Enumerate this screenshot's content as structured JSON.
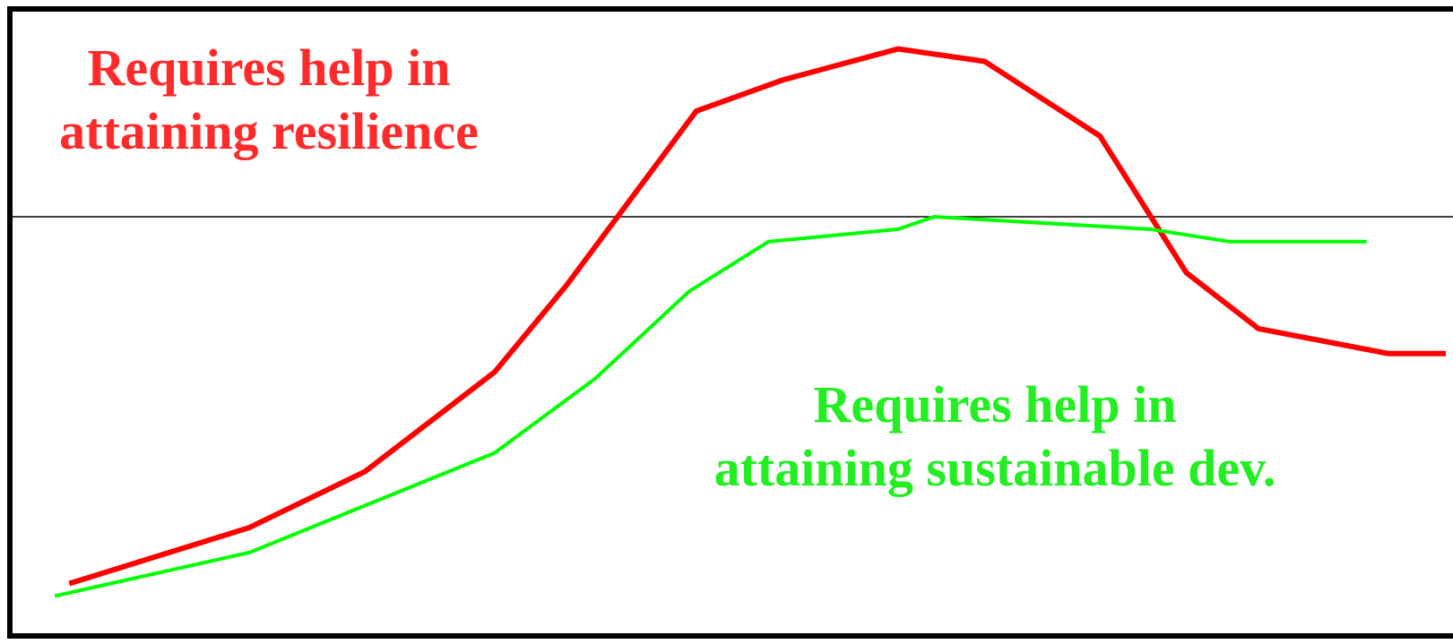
{
  "chart_data": {
    "type": "line",
    "title": "",
    "xlabel": "",
    "ylabel": "",
    "xlim": [
      0,
      100
    ],
    "ylim": [
      0,
      100
    ],
    "grid": false,
    "reference_line": {
      "y": 67
    },
    "series": [
      {
        "key": "resilience",
        "color": "#ff0000",
        "x": [
          4,
          16.5,
          24.5,
          33.5,
          38.5,
          47.5,
          53.5,
          61.5,
          67.5,
          75.5,
          81.5,
          86.5,
          95.5,
          99.5
        ],
        "y": [
          8,
          17,
          26,
          42,
          56,
          84,
          89,
          94,
          92,
          80,
          58,
          49,
          45,
          45
        ]
      },
      {
        "key": "sustainable",
        "color": "#00ff00",
        "x": [
          3,
          16.5,
          33.5,
          40.5,
          47,
          52.5,
          61.5,
          64,
          79,
          84.5,
          94
        ],
        "y": [
          6,
          13,
          29,
          41,
          55,
          63,
          65,
          67,
          65,
          63,
          63
        ]
      }
    ],
    "annotations": [
      {
        "key": "resilience",
        "color": "#ff2a2a",
        "lines": [
          "Requires help in",
          "attaining resilience"
        ]
      },
      {
        "key": "sustainable",
        "color": "#22ee22",
        "lines": [
          "Requires help in",
          "attaining sustainable dev."
        ]
      }
    ]
  }
}
